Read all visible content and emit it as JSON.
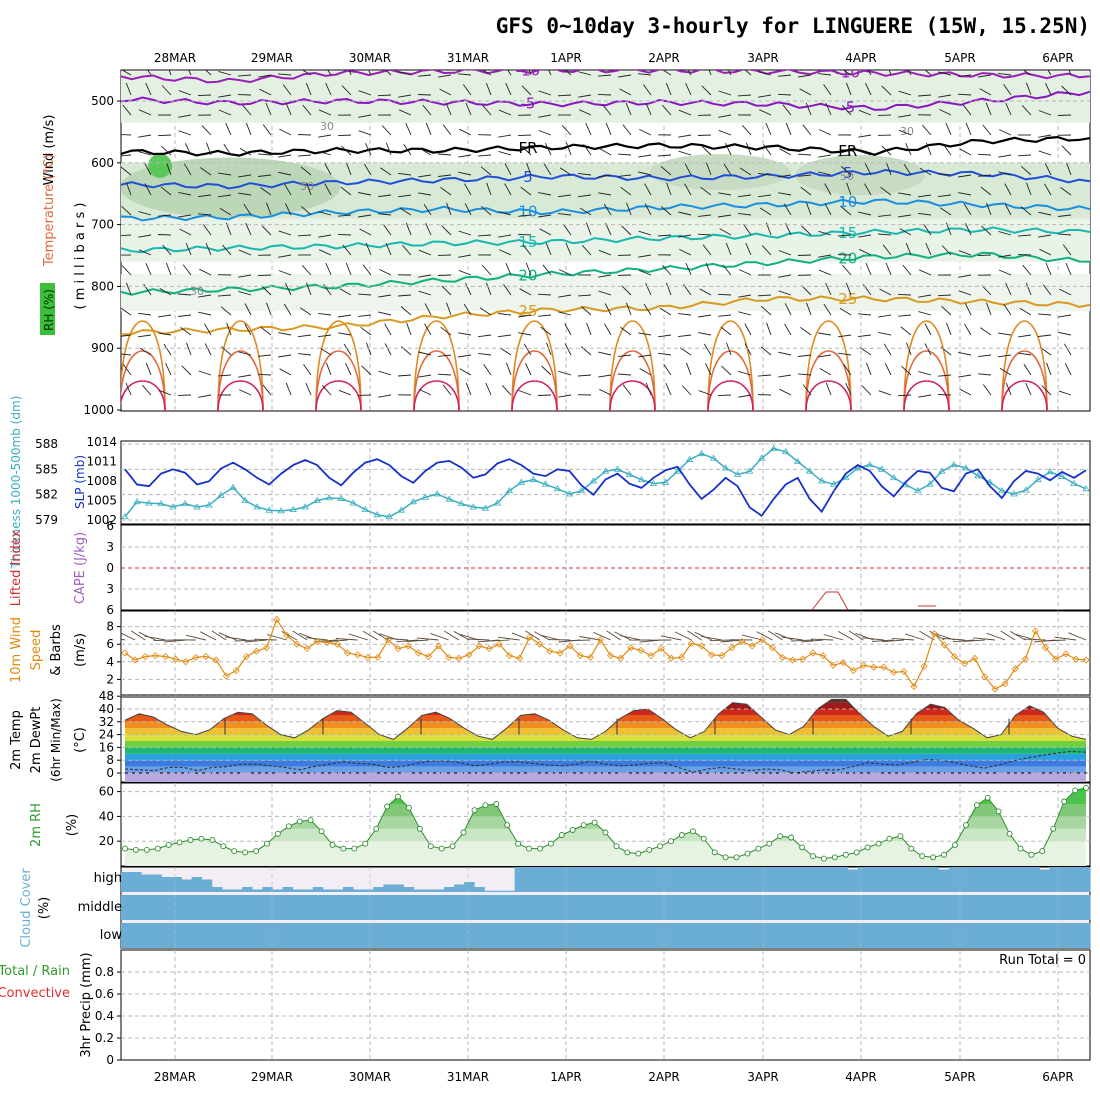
{
  "title": "GFS 0~10day 3-hourly for LINGUERE (15W, 15.25N)",
  "dates": [
    "28MAR",
    "29MAR",
    "30MAR",
    "31MAR",
    "1APR",
    "2APR",
    "3APR",
    "4APR",
    "5APR",
    "6APR"
  ],
  "colors": {
    "grid": "#b8b8b8",
    "slp": "#3aaec0",
    "thickness": "#1530c8",
    "wind10m": "#e08a10",
    "rh": "#2e8b2e",
    "cloud": "#6aaed6",
    "cloud_gap": "#f3eef6",
    "lifted": "#d03030"
  },
  "chart_data": [
    {
      "type": "contour",
      "panel": "upper-air",
      "ylabel_parts": [
        "RH (%)",
        "Temperature (°C)",
        "Wind (m/s)"
      ],
      "ylabel_unit": "( m i l l i b a r s )",
      "yticks": [
        500,
        600,
        700,
        800,
        900,
        1000
      ],
      "ylim": [
        450,
        1000
      ],
      "temperature_contours": [
        {
          "label": "-10",
          "levels_mb": [
            460,
            468,
            455,
            452,
            450,
            450,
            452,
            455,
            458,
            460
          ]
        },
        {
          "label": "-5",
          "levels_mb": [
            497,
            503,
            500,
            502,
            505,
            502,
            505,
            512,
            500,
            485
          ]
        },
        {
          "label": "FR",
          "levels_mb": [
            582,
            585,
            580,
            580,
            575,
            572,
            575,
            583,
            565,
            560
          ]
        },
        {
          "label": "5",
          "levels_mb": [
            635,
            638,
            632,
            628,
            622,
            625,
            622,
            615,
            618,
            630
          ]
        },
        {
          "label": "10",
          "levels_mb": [
            690,
            688,
            680,
            675,
            680,
            672,
            668,
            662,
            668,
            675
          ]
        },
        {
          "label": "15",
          "levels_mb": [
            742,
            738,
            735,
            730,
            728,
            722,
            718,
            712,
            708,
            712
          ]
        },
        {
          "label": "20",
          "levels_mb": [
            810,
            805,
            800,
            790,
            780,
            772,
            762,
            752,
            748,
            760
          ]
        },
        {
          "label": "25",
          "levels_mb": [
            875,
            870,
            865,
            848,
            838,
            835,
            820,
            820,
            825,
            830
          ]
        }
      ],
      "rh_contour_labels": [
        "30",
        "50"
      ],
      "legend": {
        "rh": "RH (%)"
      }
    },
    {
      "type": "line",
      "panel": "pressure",
      "ylabel_left": "Thickness 1000-500mb (dm)",
      "ylabel_right": "SLP (mb)",
      "yticks_left": [
        579,
        582,
        585,
        588
      ],
      "yticks_right": [
        1002,
        1005,
        1008,
        1011,
        1014
      ],
      "series": [
        {
          "name": "SLP (mb)",
          "axis": "right",
          "values": [
            1002.5,
            1004.8,
            1004.6,
            1004.5,
            1004.0,
            1004.5,
            1004.0,
            1004.3,
            1005.8,
            1007.0,
            1005.0,
            1004.0,
            1003.5,
            1003.4,
            1003.6,
            1004.0,
            1005.0,
            1005.4,
            1005.3,
            1004.6,
            1003.6,
            1002.8,
            1002.5,
            1003.5,
            1004.8,
            1005.5,
            1006.0,
            1005.2,
            1004.5,
            1004.0,
            1003.8,
            1004.6,
            1006.5,
            1007.8,
            1008.2,
            1007.5,
            1006.8,
            1006.0,
            1006.5,
            1008.0,
            1009.5,
            1009.8,
            1009.0,
            1008.2,
            1007.6,
            1007.8,
            1009.5,
            1011.3,
            1012.2,
            1011.5,
            1010.0,
            1009.0,
            1009.5,
            1011.5,
            1013.0,
            1012.5,
            1011.0,
            1009.5,
            1008.0,
            1007.5,
            1008.5,
            1010.0,
            1010.5,
            1009.8,
            1008.5,
            1007.4,
            1006.5,
            1007.5,
            1009.5,
            1010.5,
            1010.0,
            1008.8,
            1007.8,
            1006.5,
            1006.0,
            1006.6,
            1008.2,
            1009.4,
            1008.7,
            1007.6,
            1006.8
          ]
        },
        {
          "name": "Thickness 1000-500mb (dm)",
          "axis": "left",
          "values": [
            585.0,
            583.2,
            583.0,
            584.5,
            585.0,
            584.6,
            583.2,
            583.6,
            585.1,
            585.8,
            585.0,
            584.0,
            583.2,
            584.5,
            585.5,
            586.1,
            585.5,
            584.0,
            583.1,
            584.6,
            585.8,
            586.2,
            585.5,
            584.2,
            583.4,
            584.8,
            585.8,
            586.0,
            585.2,
            584.0,
            584.4,
            585.7,
            586.2,
            585.5,
            584.5,
            584.2,
            585.0,
            584.8,
            583.1,
            582.0,
            583.8,
            584.5,
            583.3,
            582.8,
            584.0,
            584.9,
            585.3,
            583.2,
            581.5,
            582.6,
            584.0,
            583.0,
            580.5,
            579.5,
            581.5,
            583.2,
            584.0,
            581.5,
            580.0,
            582.4,
            584.5,
            585.5,
            584.8,
            583.0,
            581.8,
            583.5,
            584.8,
            584.6,
            582.8,
            582.4,
            584.5,
            585.0,
            583.0,
            581.6,
            583.6,
            584.8,
            584.5,
            583.7,
            584.7,
            584.0,
            584.9
          ]
        }
      ]
    },
    {
      "type": "line",
      "panel": "instability",
      "ylabel_left": "Lifted Index",
      "ylabel_right": "CAPE (J/kg)",
      "yticks": [
        "6",
        "3",
        "0",
        "3",
        "6"
      ],
      "series": []
    },
    {
      "type": "line",
      "panel": "wind10m",
      "ylabel": "10m Wind Speed & Barbs (m/s)",
      "yticks": [
        2,
        4,
        6,
        8
      ],
      "ylim": [
        0,
        10
      ],
      "series": [
        {
          "name": "10m Wind Speed",
          "values": [
            5.0,
            4.2,
            4.6,
            4.7,
            4.6,
            4.3,
            4.0,
            4.5,
            4.6,
            4.2,
            2.4,
            3.0,
            4.6,
            5.2,
            5.6,
            8.8,
            7.0,
            6.0,
            5.5,
            6.3,
            6.2,
            6.0,
            5.0,
            4.8,
            4.5,
            4.5,
            6.5,
            5.5,
            5.8,
            5.0,
            4.6,
            5.8,
            4.5,
            4.4,
            4.8,
            5.8,
            5.5,
            6.0,
            4.7,
            4.4,
            6.8,
            6.0,
            5.2,
            5.0,
            5.8,
            4.7,
            4.5,
            6.5,
            4.7,
            4.4,
            5.6,
            5.3,
            4.7,
            5.5,
            4.4,
            4.5,
            6.1,
            5.8,
            4.8,
            4.7,
            5.6,
            6.3,
            5.8,
            6.5,
            5.6,
            4.5,
            4.2,
            4.3,
            5.0,
            4.7,
            3.6,
            3.9,
            3.0,
            3.6,
            3.4,
            3.4,
            2.8,
            2.9,
            1.2,
            3.5,
            7.2,
            5.9,
            4.6,
            3.8,
            4.4,
            2.3,
            0.9,
            1.5,
            3.2,
            4.3,
            7.5,
            5.6,
            4.3,
            4.9,
            4.3,
            4.2
          ]
        }
      ]
    },
    {
      "type": "area",
      "panel": "temperature2m",
      "ylabel": "2m Temp / 2m DewPt (6hr Min/Max) (°C)",
      "yticks": [
        0,
        8,
        16,
        24,
        32,
        40,
        48
      ],
      "ylim": [
        -6,
        50
      ],
      "series": [
        {
          "name": "2m Temp",
          "values": [
            33,
            37,
            35,
            30,
            26,
            24,
            27,
            34,
            38,
            37,
            30,
            24,
            22,
            27,
            34,
            39,
            38,
            31,
            24,
            21,
            28,
            36,
            38,
            34,
            28,
            23,
            21,
            28,
            36,
            37,
            33,
            27,
            22,
            21,
            26,
            34,
            39,
            40,
            34,
            27,
            22,
            26,
            37,
            44,
            43,
            35,
            27,
            24,
            29,
            40,
            46,
            46,
            37,
            29,
            23,
            26,
            37,
            43,
            41,
            33,
            28,
            22,
            24,
            36,
            42,
            38,
            28,
            23,
            21
          ]
        },
        {
          "name": "2m DewPt",
          "values": [
            2.5,
            2.0,
            1.5,
            3.5,
            3.5,
            1.5,
            3.5,
            4.0,
            5.5,
            5.5,
            4.5,
            3.5,
            2.0,
            4.0,
            5.5,
            7.0,
            6.0,
            5.5,
            3.5,
            4.0,
            6.0,
            7.5,
            7.5,
            6.5,
            4.5,
            5.5,
            7.0,
            7.0,
            6.0,
            5.0,
            4.5,
            5.5,
            7.5,
            5.5,
            4.5,
            5.0,
            6.0,
            6.5,
            3.5,
            0.5,
            2.5,
            3.5,
            2.5,
            1.5,
            2.5,
            2.0,
            0.0,
            1.0,
            2.0,
            2.0,
            4.0,
            6.5,
            5.5,
            5.0,
            6.5,
            8.5,
            8.0,
            6.5,
            4.5,
            3.0,
            5.0,
            7.5,
            9.5,
            11.0,
            12.5,
            13.5,
            13.0
          ]
        }
      ]
    },
    {
      "type": "area",
      "panel": "rh2m",
      "ylabel": "2m RH (%)",
      "yticks": [
        20,
        40,
        60
      ],
      "ylim": [
        0,
        65
      ],
      "series": [
        {
          "name": "2m RH",
          "values": [
            14,
            13,
            13,
            14,
            17,
            19,
            21,
            22,
            21,
            16,
            12,
            11,
            12,
            18,
            26,
            32,
            36,
            37,
            28,
            17,
            14,
            14,
            18,
            30,
            48,
            56,
            47,
            30,
            16,
            14,
            16,
            27,
            45,
            49,
            50,
            33,
            18,
            14,
            14,
            18,
            25,
            29,
            33,
            35,
            27,
            16,
            11,
            10,
            13,
            16,
            20,
            25,
            28,
            22,
            11,
            7,
            7,
            10,
            14,
            18,
            24,
            23,
            15,
            8,
            6,
            7,
            9,
            11,
            15,
            18,
            22,
            24,
            14,
            8,
            7,
            9,
            17,
            33,
            49,
            55,
            44,
            26,
            14,
            9,
            12,
            30,
            52,
            61,
            63
          ]
        }
      ]
    },
    {
      "type": "bar",
      "panel": "cloud",
      "ylabel": "Cloud Cover (%)",
      "levels": [
        "high",
        "middle",
        "low"
      ],
      "series": [
        {
          "name": "high",
          "values": [
            80,
            80,
            70,
            70,
            60,
            60,
            50,
            60,
            50,
            20,
            10,
            10,
            20,
            10,
            20,
            10,
            20,
            10,
            10,
            20,
            10,
            10,
            20,
            10,
            10,
            20,
            30,
            30,
            20,
            10,
            10,
            10,
            20,
            30,
            40,
            20,
            5,
            5,
            5,
            100,
            100,
            100,
            100,
            100,
            100,
            100,
            100,
            100,
            100,
            100,
            100,
            100,
            100,
            100,
            100,
            100,
            100,
            100,
            100,
            100,
            100,
            100,
            100,
            100,
            100,
            100,
            100,
            100,
            100,
            100,
            100,
            100,
            90,
            100,
            100,
            100,
            100,
            100,
            100,
            100,
            100,
            90,
            100,
            100,
            100,
            100,
            100,
            100,
            100,
            100,
            100,
            90,
            100,
            100,
            100,
            100
          ]
        },
        {
          "name": "middle",
          "values": [
            100,
            100,
            100,
            100,
            100,
            100,
            100,
            100,
            100,
            100,
            100,
            100,
            100,
            100,
            100,
            100,
            100,
            100,
            100,
            100,
            100,
            100,
            100,
            100,
            100,
            100,
            100,
            100,
            100,
            100,
            100,
            100,
            100,
            100,
            100,
            100,
            100,
            100,
            100,
            100,
            100,
            100,
            100,
            100,
            100,
            100,
            100,
            100,
            100,
            100,
            100,
            100,
            100,
            100,
            100,
            100,
            100,
            100,
            100,
            100,
            100,
            100,
            100,
            100,
            100,
            100,
            100,
            100,
            100,
            100,
            100,
            100,
            100,
            100,
            100,
            100,
            100,
            100,
            100,
            100,
            100,
            100,
            100,
            100,
            100,
            100,
            100,
            100,
            100,
            100,
            100,
            100,
            100,
            100,
            100,
            100
          ]
        },
        {
          "name": "low",
          "values": [
            100,
            100,
            100,
            100,
            100,
            100,
            100,
            100,
            100,
            100,
            100,
            100,
            100,
            100,
            100,
            100,
            100,
            100,
            100,
            100,
            100,
            100,
            100,
            100,
            100,
            100,
            100,
            100,
            100,
            100,
            100,
            100,
            100,
            100,
            100,
            100,
            100,
            100,
            100,
            100,
            100,
            100,
            100,
            100,
            100,
            100,
            100,
            100,
            100,
            100,
            100,
            100,
            100,
            100,
            100,
            100,
            100,
            100,
            100,
            100,
            100,
            100,
            100,
            100,
            100,
            100,
            100,
            100,
            100,
            100,
            100,
            100,
            100,
            100,
            100,
            100,
            100,
            100,
            100,
            100,
            100,
            100,
            100,
            100,
            100,
            100,
            100,
            100,
            100,
            100,
            100,
            100,
            100,
            100,
            100,
            100
          ]
        }
      ]
    },
    {
      "type": "bar",
      "panel": "precip",
      "ylabel": "3hr Precip (mm)",
      "ylabel_legend": [
        "Total / Rain",
        "Convective"
      ],
      "yticks": [
        0,
        0.2,
        0.4,
        0.6,
        0.8
      ],
      "ylim": [
        0,
        1.0
      ],
      "annotation": "Run Total = 0",
      "series": [
        {
          "name": "3hr Precip",
          "values": []
        }
      ]
    }
  ]
}
